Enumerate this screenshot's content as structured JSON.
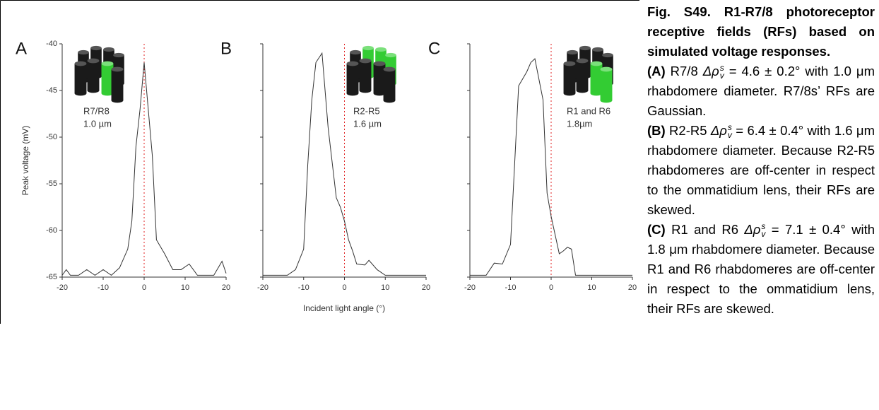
{
  "chart_data": [
    {
      "type": "line",
      "panel": "A",
      "inset": [
        "R7/R8",
        "1.0 µm"
      ],
      "ylabel": "Peak voltage (mV)",
      "color": "#333333",
      "ref_color": "#e02020",
      "ref_x": 0,
      "highlight_color": "#33cc33",
      "x": [
        -20,
        -19,
        -18,
        -16,
        -14,
        -12,
        -10,
        -8,
        -6,
        -4,
        -3,
        -2,
        -1,
        0,
        1,
        2,
        3,
        5,
        7,
        9,
        11,
        13,
        15,
        17,
        19,
        20
      ],
      "values": [
        -64.8,
        -64.2,
        -64.8,
        -64.8,
        -64.2,
        -64.8,
        -64.2,
        -64.8,
        -64,
        -62,
        -59,
        -51,
        -47,
        -42,
        -47,
        -52,
        -61,
        -62.5,
        -64.2,
        -64.2,
        -63.6,
        -64.8,
        -64.8,
        -64.8,
        -63.3,
        -64.6
      ],
      "xlim": [
        -20,
        20
      ],
      "xticks": [
        -20,
        -10,
        0,
        10,
        20
      ],
      "ylim": [
        -65,
        -40
      ],
      "yticks": [
        -65,
        -60,
        -55,
        -50,
        -45,
        -40
      ],
      "show_ytick_labels": true
    },
    {
      "type": "line",
      "panel": "B",
      "inset": [
        "R2-R5",
        "1.6 µm"
      ],
      "xlabel": "Incident light angle (°)",
      "color": "#333333",
      "ref_color": "#e02020",
      "ref_x": 0,
      "highlight_color": "#33cc33",
      "x": [
        -20,
        -14,
        -12,
        -10,
        -9,
        -8,
        -7,
        -5.5,
        -4,
        -2,
        -1,
        0,
        1,
        2,
        3,
        5,
        6,
        8,
        10,
        20
      ],
      "values": [
        -64.8,
        -64.8,
        -64.2,
        -62,
        -53,
        -46,
        -42,
        -41,
        -49,
        -56.5,
        -57.5,
        -59,
        -61,
        -62.2,
        -63.6,
        -63.7,
        -63.2,
        -64.2,
        -64.8,
        -64.8
      ],
      "xlim": [
        -20,
        20
      ],
      "xticks": [
        -20,
        -10,
        0,
        10,
        20
      ],
      "ylim": [
        -65,
        -40
      ],
      "yticks": [
        -65,
        -60,
        -55,
        -50,
        -45,
        -40
      ],
      "show_ytick_labels": false
    },
    {
      "type": "line",
      "panel": "C",
      "inset": [
        "R1 and R6",
        "1.8µm"
      ],
      "color": "#333333",
      "ref_color": "#e02020",
      "ref_x": 0,
      "highlight_color": "#33cc33",
      "x": [
        -20,
        -16,
        -14,
        -12,
        -10,
        -8,
        -6,
        -5,
        -4,
        -2,
        -1,
        0,
        1,
        2,
        3,
        4,
        5,
        6,
        20
      ],
      "values": [
        -64.8,
        -64.8,
        -63.5,
        -63.6,
        -61.5,
        -44.5,
        -43,
        -42,
        -41.6,
        -46,
        -56,
        -58.5,
        -60.5,
        -62.5,
        -62.2,
        -61.8,
        -62,
        -64.8,
        -64.8
      ],
      "xlim": [
        -20,
        20
      ],
      "xticks": [
        -20,
        -10,
        0,
        10,
        20
      ],
      "ylim": [
        -65,
        -40
      ],
      "yticks": [
        -65,
        -60,
        -55,
        -50,
        -45,
        -40
      ],
      "show_ytick_labels": false
    }
  ],
  "caption": {
    "title": "Fig. S49. R1-R7/8 photoreceptor receptive fields (RFs) based on simulated voltage responses.",
    "paragraphs": [
      {
        "label": "(A)",
        "pre": " R7/8 ",
        "symbol": "Δρ",
        "sup": "s",
        "sub": "v",
        "post": " = 4.6 ± 0.2° with 1.0 μm rhabdomere diameter. R7/8s’ RFs are Gaussian."
      },
      {
        "label": "(B)",
        "pre": " R2-R5 ",
        "symbol": "Δρ",
        "sup": "s",
        "sub": "v",
        "post": " = 6.4 ± 0.4° with 1.6 μm rhabdomere diameter. Because R2-R5 rhabdomeres are off-center in respect to the ommatidium lens, their RFs are skewed."
      },
      {
        "label": "(C)",
        "pre": " R1 and R6 ",
        "symbol": "Δρ",
        "sup": "s",
        "sub": "v",
        "post": " = 7.1 ± 0.4° with 1.8 μm rhabdomere diameter. Because R1 and R6 rhabdomeres are off-center in respect to the ommatidium lens, their RFs are skewed."
      }
    ]
  }
}
